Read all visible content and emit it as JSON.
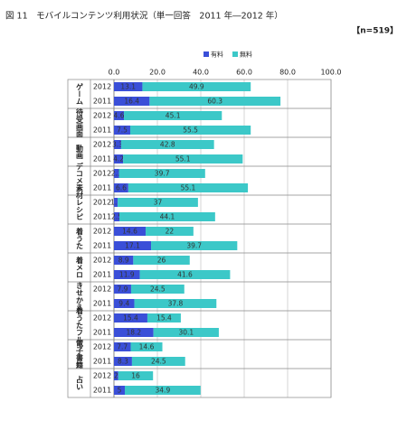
{
  "chart_data": {
    "type": "stacked-bar-horizontal",
    "title": "図 11　モバイルコンテンツ利用状況（単一回答　2011 年―2012 年）",
    "subtitle": "【n=519】",
    "groups": [
      "ゲーム",
      "待受画面",
      "動画",
      "デコメ素材",
      "レシピ",
      "着うた",
      "着メロ",
      "きせかえ",
      "着うたフル",
      "電子書籍",
      "占い"
    ],
    "categories": [
      "2012",
      "2011",
      "2012",
      "2011",
      "2012",
      "2011",
      "2012",
      "2011",
      "2012",
      "2011",
      "2012",
      "2011",
      "2012",
      "2011",
      "2012",
      "2011",
      "2012",
      "2011",
      "2012",
      "2011",
      "2012",
      "2011"
    ],
    "series": [
      {
        "name": "有料",
        "color": "#3a4fd8",
        "values": [
          13.1,
          16.4,
          4.6,
          7.5,
          3.3,
          4.2,
          2.3,
          6.6,
          1.7,
          2.5,
          14.6,
          17.1,
          8.9,
          11.9,
          7.9,
          9.4,
          15.4,
          18.2,
          7.7,
          8.3,
          2.0,
          5.0
        ]
      },
      {
        "name": "無料",
        "color": "#3cc8c8",
        "values": [
          49.9,
          60.3,
          45.1,
          55.5,
          42.8,
          55.1,
          39.7,
          55.1,
          37.0,
          44.1,
          22.0,
          39.7,
          26.0,
          41.6,
          24.5,
          37.8,
          15.4,
          30.1,
          14.6,
          24.5,
          16.0,
          34.9
        ]
      }
    ],
    "xlim": [
      0,
      100
    ],
    "xticks": [
      {
        "value": 0,
        "label": "0.0"
      },
      {
        "value": 20,
        "label": "20.0"
      },
      {
        "value": 40,
        "label": "40.0"
      },
      {
        "value": 60,
        "label": "60.0"
      },
      {
        "value": 80,
        "label": "80.0"
      },
      {
        "value": 100,
        "label": "100.0"
      }
    ],
    "grid": true
  }
}
